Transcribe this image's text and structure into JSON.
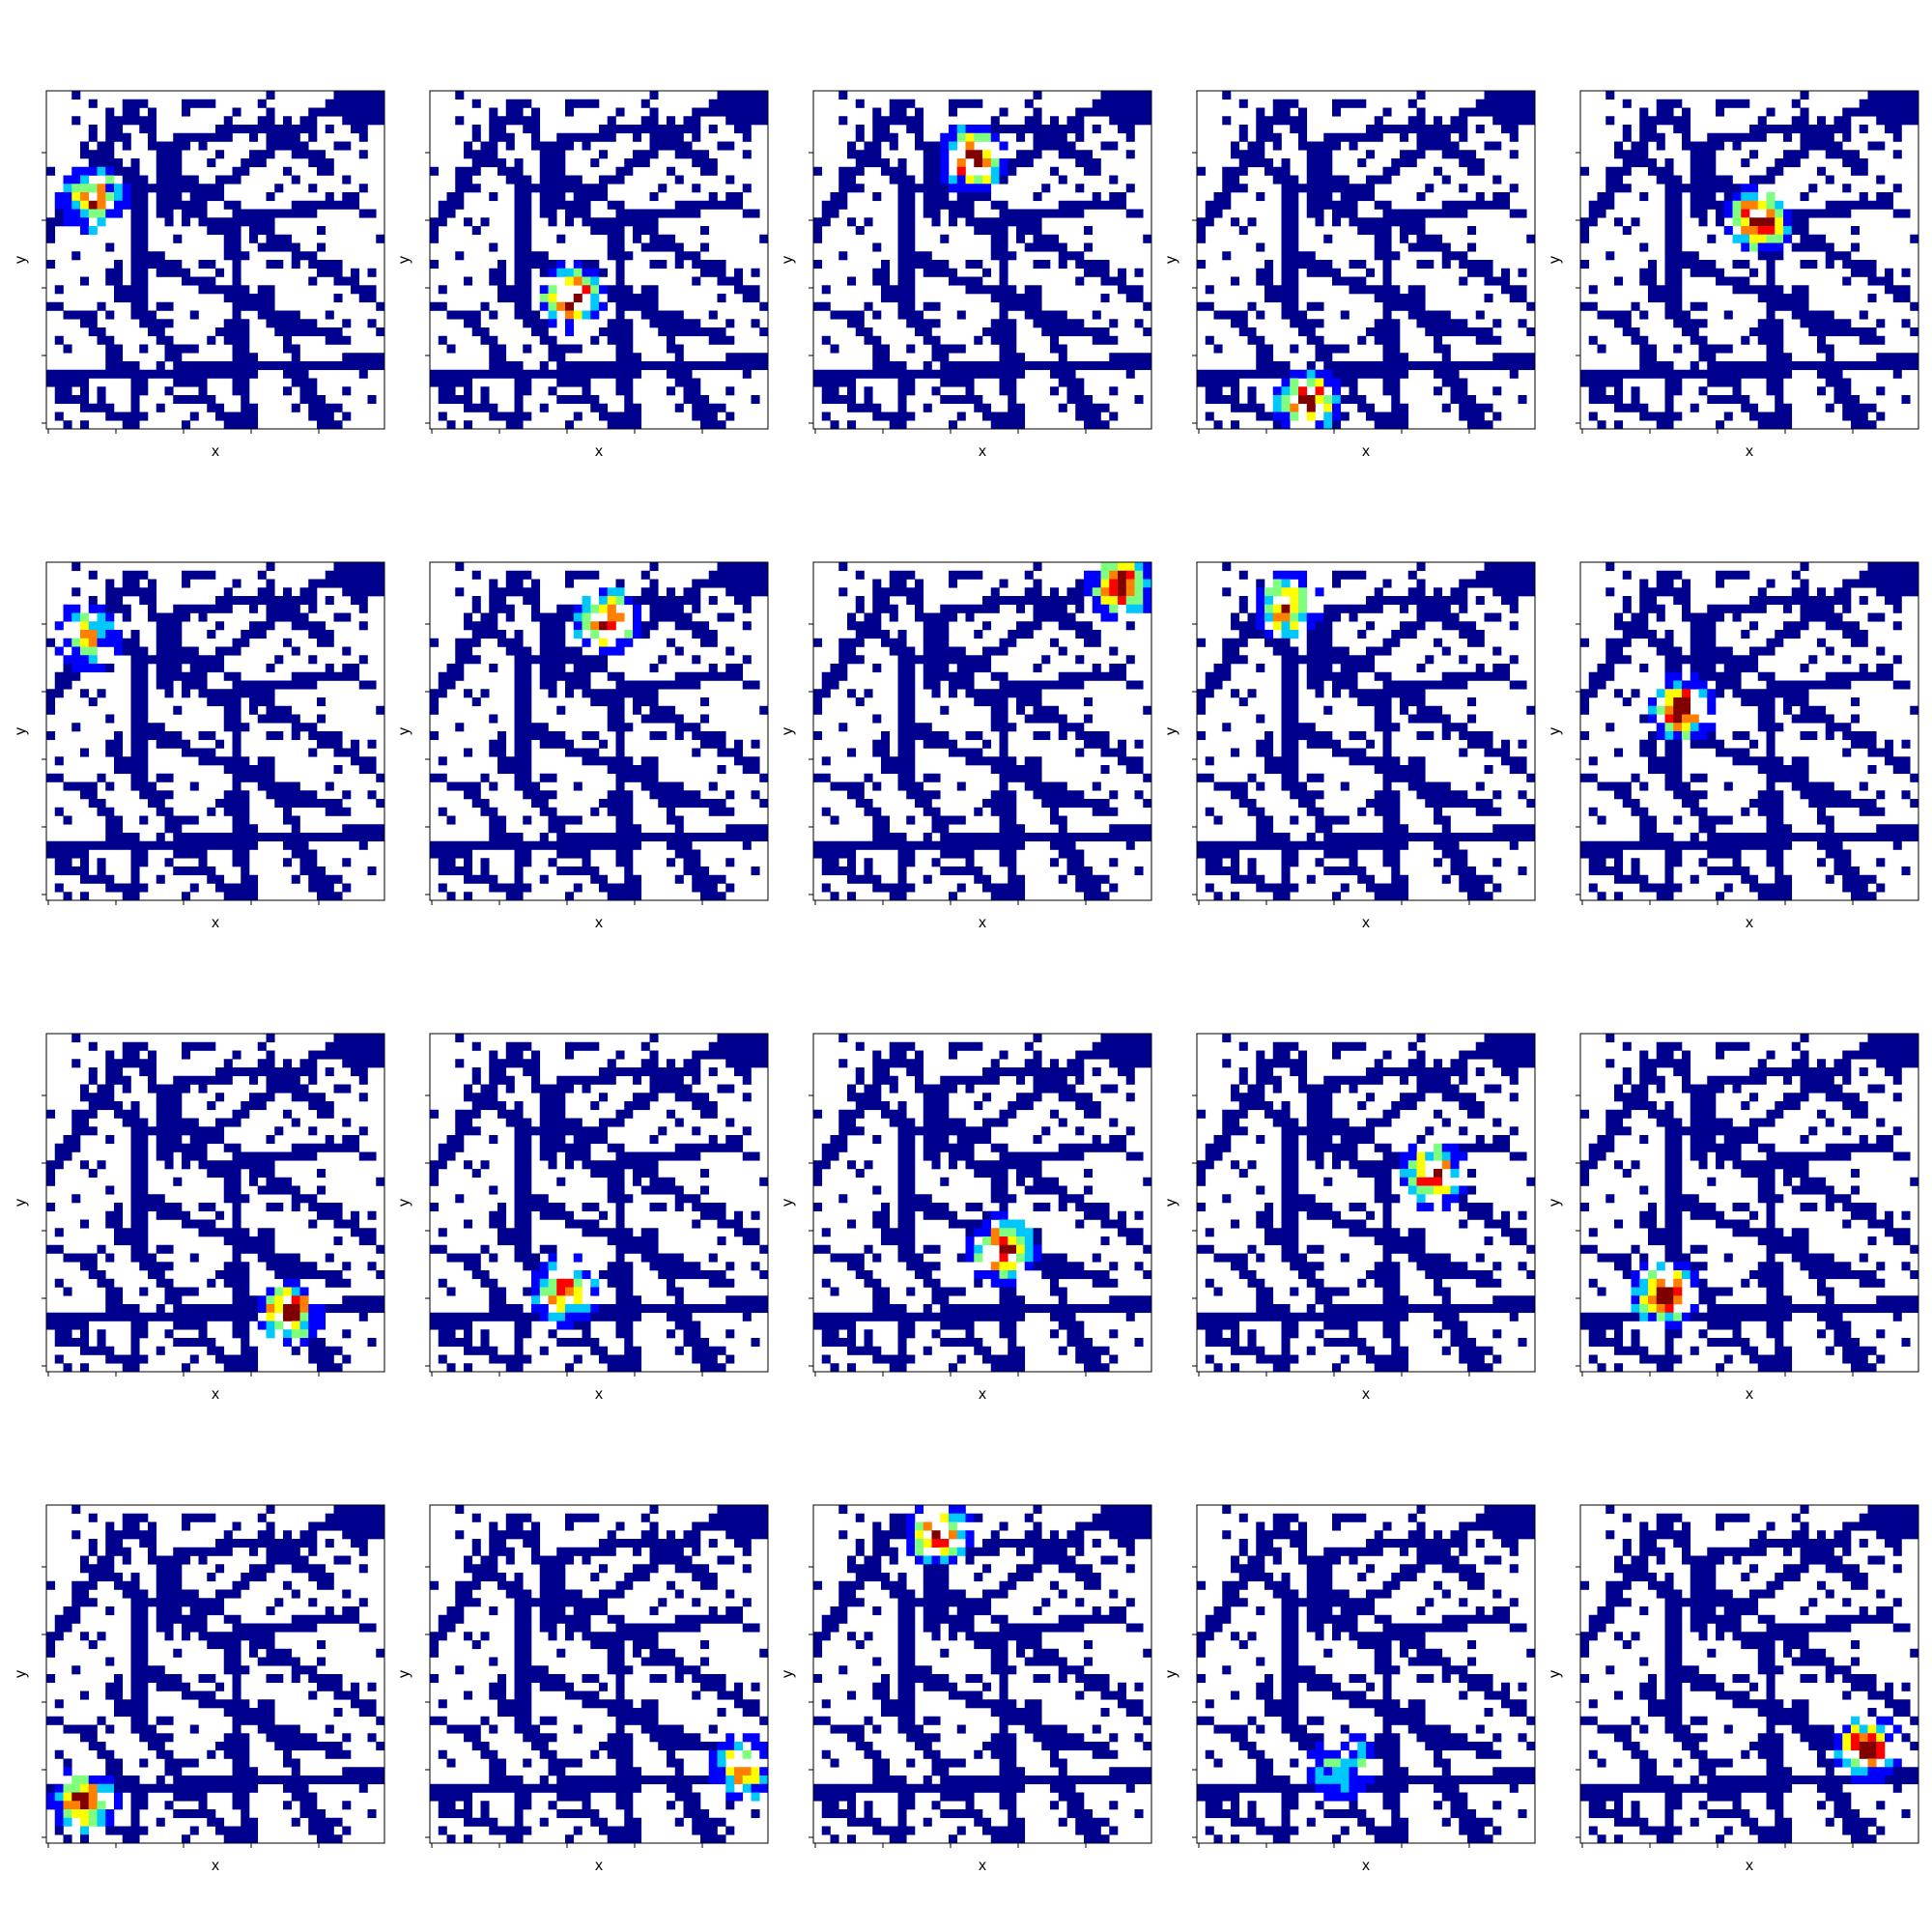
{
  "chart_data": {
    "type": "heatmap",
    "layout": {
      "rows": 4,
      "cols": 5
    },
    "grid_cells": 40,
    "colormap": [
      "#00008f",
      "#0000ff",
      "#00c8ff",
      "#7fff7f",
      "#ffff00",
      "#ff7f00",
      "#ff0000",
      "#800000"
    ],
    "xlabel": "x",
    "ylabel": "y",
    "grid": false,
    "legend": "none",
    "background_cells": "dark-navy road/street network common to all panels",
    "panels": [
      {
        "hotspot": [
          0.14,
          0.32
        ],
        "intensity": 0.7
      },
      {
        "hotspot": [
          0.42,
          0.61
        ],
        "intensity": 0.95
      },
      {
        "hotspot": [
          0.47,
          0.2
        ],
        "intensity": 0.95
      },
      {
        "hotspot": [
          0.33,
          0.92
        ],
        "intensity": 0.9
      },
      {
        "hotspot": [
          0.53,
          0.38
        ],
        "intensity": 1.0
      },
      {
        "hotspot": [
          0.12,
          0.22
        ],
        "intensity": 0.55
      },
      {
        "hotspot": [
          0.52,
          0.17
        ],
        "intensity": 0.8
      },
      {
        "hotspot": [
          0.91,
          0.07
        ],
        "intensity": 0.9
      },
      {
        "hotspot": [
          0.27,
          0.13
        ],
        "intensity": 0.75
      },
      {
        "hotspot": [
          0.3,
          0.43
        ],
        "intensity": 0.95
      },
      {
        "hotspot": [
          0.72,
          0.82
        ],
        "intensity": 0.85
      },
      {
        "hotspot": [
          0.4,
          0.76
        ],
        "intensity": 0.75
      },
      {
        "hotspot": [
          0.56,
          0.64
        ],
        "intensity": 0.85
      },
      {
        "hotspot": [
          0.7,
          0.42
        ],
        "intensity": 0.85
      },
      {
        "hotspot": [
          0.25,
          0.77
        ],
        "intensity": 0.95
      },
      {
        "hotspot": [
          0.11,
          0.88
        ],
        "intensity": 0.8
      },
      {
        "hotspot": [
          0.92,
          0.78
        ],
        "intensity": 0.7
      },
      {
        "hotspot": [
          0.37,
          0.08
        ],
        "intensity": 0.85
      },
      {
        "hotspot": [
          0.43,
          0.77
        ],
        "intensity": 0.4
      },
      {
        "hotspot": [
          0.85,
          0.72
        ],
        "intensity": 0.9
      }
    ]
  }
}
